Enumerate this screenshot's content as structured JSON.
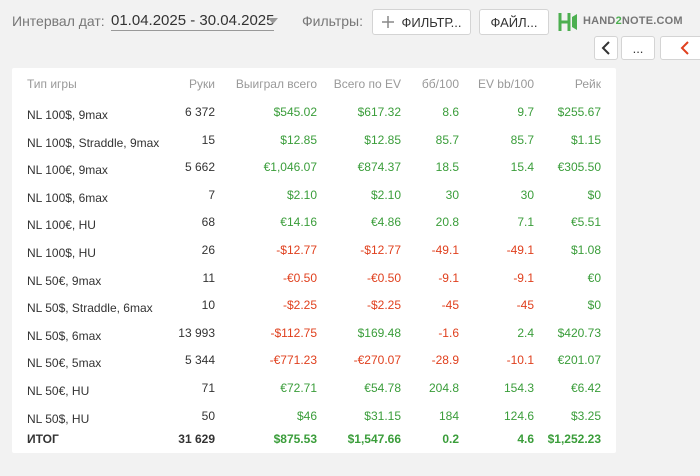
{
  "header": {
    "date_label": "Интервал дат:",
    "date_range": "01.04.2025 - 30.04.2025",
    "filters_label": "Фильтры:",
    "filter_button": "ФИЛЬТР...",
    "file_button": "ФАЙЛ...",
    "logo": {
      "left": "HAND",
      "mid": "2",
      "right": "NOTE.COM"
    },
    "more_button": "..."
  },
  "table": {
    "headers": [
      "Тип игры",
      "Руки",
      "Выиграл всего",
      "Всего по EV",
      "бб/100",
      "EV bb/100",
      "Рейк"
    ],
    "rows": [
      [
        "NL 100$, 9max",
        "6 372",
        "$545.02",
        "$617.32",
        "8.6",
        "9.7",
        "$255.67"
      ],
      [
        "NL 100$, Straddle, 9max",
        "15",
        "$12.85",
        "$12.85",
        "85.7",
        "85.7",
        "$1.15"
      ],
      [
        "NL 100€, 9max",
        "5 662",
        "€1,046.07",
        "€874.37",
        "18.5",
        "15.4",
        "€305.50"
      ],
      [
        "NL 100$, 6max",
        "7",
        "$2.10",
        "$2.10",
        "30",
        "30",
        "$0"
      ],
      [
        "NL 100€, HU",
        "68",
        "€14.16",
        "€4.86",
        "20.8",
        "7.1",
        "€5.51"
      ],
      [
        "NL 100$, HU",
        "26",
        "-$12.77",
        "-$12.77",
        "-49.1",
        "-49.1",
        "$1.08"
      ],
      [
        "NL 50€, 9max",
        "11",
        "-€0.50",
        "-€0.50",
        "-9.1",
        "-9.1",
        "€0"
      ],
      [
        "NL 50$, Straddle, 6max",
        "10",
        "-$2.25",
        "-$2.25",
        "-45",
        "-45",
        "$0"
      ],
      [
        "NL 50$, 6max",
        "13 993",
        "-$112.75",
        "$169.48",
        "-1.6",
        "2.4",
        "$420.73"
      ],
      [
        "NL 50€, 5max",
        "5 344",
        "-€771.23",
        "-€270.07",
        "-28.9",
        "-10.1",
        "€201.07"
      ],
      [
        "NL 50€, HU",
        "71",
        "€72.71",
        "€54.78",
        "204.8",
        "154.3",
        "€6.42"
      ],
      [
        "NL 50$, HU",
        "50",
        "$46",
        "$31.15",
        "184",
        "124.6",
        "$3.25"
      ]
    ],
    "total": [
      "ИТОГ",
      "31 629",
      "$875.53",
      "$1,547.66",
      "0.2",
      "4.6",
      "$1,252.23"
    ]
  }
}
